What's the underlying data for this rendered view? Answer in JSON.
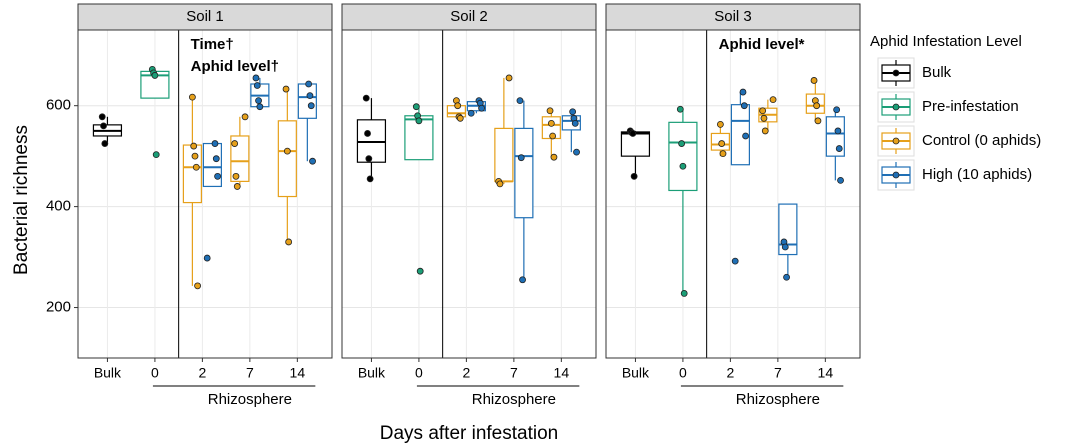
{
  "chart_data": {
    "type": "box",
    "ylabel": "Bacterial richness",
    "xlabel": "Days after infestation",
    "ylim": [
      100,
      750
    ],
    "yticks": [
      200,
      400,
      600
    ],
    "grid": true,
    "legend_title": "Aphid Infestation Level",
    "legend_position": "right",
    "x_group_label": "Rhizosphere",
    "categories": [
      "Bulk",
      "0",
      "2",
      "7",
      "14"
    ],
    "series": [
      {
        "name": "Bulk",
        "color": "#000000"
      },
      {
        "name": "Pre-infestation",
        "color": "#1b9e77"
      },
      {
        "name": "Control (0 aphids)",
        "color": "#e6a01a"
      },
      {
        "name": "High (10 aphids)",
        "color": "#1f6fb5"
      }
    ],
    "panels": [
      {
        "title": "Soil 1",
        "annotations": [
          "Time†",
          "Aphid level†"
        ],
        "boxes": [
          {
            "category": "Bulk",
            "series": "Bulk",
            "min": 525,
            "q1": 540,
            "median": 550,
            "q3": 562,
            "max": 578,
            "points": [
              578,
              560,
              525
            ]
          },
          {
            "category": "0",
            "series": "Pre-infestation",
            "min": 615,
            "q1": 615,
            "median": 660,
            "q3": 668,
            "max": 672,
            "points": [
              672,
              665,
              660,
              503
            ]
          },
          {
            "category": "2",
            "series": "Control (0 aphids)",
            "min": 243,
            "q1": 408,
            "median": 478,
            "q3": 522,
            "max": 617,
            "points": [
              617,
              520,
              500,
              478,
              243
            ]
          },
          {
            "category": "2",
            "series": "High (10 aphids)",
            "min": 440,
            "q1": 440,
            "median": 478,
            "q3": 525,
            "max": 525,
            "points": [
              525,
              495,
              460,
              298
            ]
          },
          {
            "category": "7",
            "series": "Control (0 aphids)",
            "min": 440,
            "q1": 450,
            "median": 490,
            "q3": 540,
            "max": 578,
            "points": [
              578,
              525,
              460,
              440
            ]
          },
          {
            "category": "7",
            "series": "High (10 aphids)",
            "min": 598,
            "q1": 598,
            "median": 620,
            "q3": 643,
            "max": 655,
            "points": [
              655,
              640,
              610,
              598
            ]
          },
          {
            "category": "14",
            "series": "Control (0 aphids)",
            "min": 330,
            "q1": 420,
            "median": 510,
            "q3": 570,
            "max": 633,
            "points": [
              633,
              510,
              330
            ]
          },
          {
            "category": "14",
            "series": "High (10 aphids)",
            "min": 490,
            "q1": 575,
            "median": 617,
            "q3": 643,
            "max": 643,
            "points": [
              643,
              620,
              600,
              490
            ]
          }
        ]
      },
      {
        "title": "Soil 2",
        "annotations": [],
        "boxes": [
          {
            "category": "Bulk",
            "series": "Bulk",
            "min": 455,
            "q1": 488,
            "median": 528,
            "q3": 572,
            "max": 615,
            "points": [
              615,
              545,
              495,
              455
            ]
          },
          {
            "category": "0",
            "series": "Pre-infestation",
            "min": 493,
            "q1": 493,
            "median": 573,
            "q3": 580,
            "max": 598,
            "points": [
              598,
              580,
              570,
              272
            ]
          },
          {
            "category": "2",
            "series": "Control (0 aphids)",
            "min": 575,
            "q1": 578,
            "median": 585,
            "q3": 600,
            "max": 610,
            "points": [
              610,
              600,
              578,
              575
            ]
          },
          {
            "category": "2",
            "series": "High (10 aphids)",
            "min": 585,
            "q1": 590,
            "median": 600,
            "q3": 608,
            "max": 610,
            "points": [
              610,
              605,
              595,
              585
            ]
          },
          {
            "category": "7",
            "series": "Control (0 aphids)",
            "min": 445,
            "q1": 450,
            "median": 450,
            "q3": 555,
            "max": 655,
            "points": [
              655,
              450,
              445
            ]
          },
          {
            "category": "7",
            "series": "High (10 aphids)",
            "min": 255,
            "q1": 378,
            "median": 500,
            "q3": 555,
            "max": 610,
            "points": [
              610,
              497,
              255
            ]
          },
          {
            "category": "14",
            "series": "Control (0 aphids)",
            "min": 498,
            "q1": 535,
            "median": 562,
            "q3": 578,
            "max": 590,
            "points": [
              590,
              565,
              540,
              498
            ]
          },
          {
            "category": "14",
            "series": "High (10 aphids)",
            "min": 508,
            "q1": 552,
            "median": 570,
            "q3": 580,
            "max": 588,
            "points": [
              588,
              575,
              565,
              508
            ]
          }
        ]
      },
      {
        "title": "Soil 3",
        "annotations": [
          "Aphid level*"
        ],
        "boxes": [
          {
            "category": "Bulk",
            "series": "Bulk",
            "min": 460,
            "q1": 500,
            "median": 545,
            "q3": 548,
            "max": 550,
            "points": [
              550,
              547,
              545,
              460
            ]
          },
          {
            "category": "0",
            "series": "Pre-infestation",
            "min": 228,
            "q1": 432,
            "median": 527,
            "q3": 567,
            "max": 593,
            "points": [
              593,
              525,
              480,
              228
            ]
          },
          {
            "category": "2",
            "series": "Control (0 aphids)",
            "min": 500,
            "q1": 512,
            "median": 523,
            "q3": 545,
            "max": 563,
            "points": [
              563,
              525,
              505
            ]
          },
          {
            "category": "2",
            "series": "High (10 aphids)",
            "min": 483,
            "q1": 483,
            "median": 570,
            "q3": 602,
            "max": 627,
            "points": [
              627,
              600,
              540,
              292
            ]
          },
          {
            "category": "7",
            "series": "Control (0 aphids)",
            "min": 550,
            "q1": 568,
            "median": 582,
            "q3": 595,
            "max": 612,
            "points": [
              612,
              590,
              575,
              550
            ]
          },
          {
            "category": "7",
            "series": "High (10 aphids)",
            "min": 260,
            "q1": 305,
            "median": 325,
            "q3": 405,
            "max": 405,
            "points": [
              330,
              320,
              260
            ]
          },
          {
            "category": "14",
            "series": "Control (0 aphids)",
            "min": 570,
            "q1": 585,
            "median": 600,
            "q3": 623,
            "max": 650,
            "points": [
              650,
              610,
              600,
              570
            ]
          },
          {
            "category": "14",
            "series": "High (10 aphids)",
            "min": 452,
            "q1": 500,
            "median": 545,
            "q3": 578,
            "max": 592,
            "points": [
              592,
              550,
              515,
              452
            ]
          }
        ]
      }
    ]
  }
}
